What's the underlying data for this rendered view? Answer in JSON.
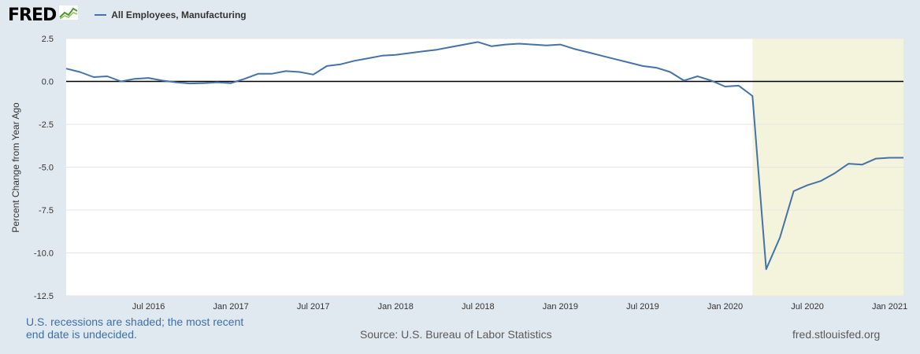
{
  "header": {
    "logo_text": "FRED",
    "logo_icon": "fred-graph-icon",
    "series_title": "All Employees, Manufacturing"
  },
  "footer": {
    "recession_note": "U.S. recessions are shaded; the most recent end date is undecided.",
    "source": "Source: U.S. Bureau of Labor Statistics",
    "url": "fred.stlouisfed.org"
  },
  "colors": {
    "line": "#4572a7",
    "recession_shade": "#f4f4dc",
    "page_bg": "#e1e9f0",
    "plot_bg": "#ffffff",
    "zero_line": "#000000",
    "grid": "#e6e6e6"
  },
  "chart_data": {
    "type": "line",
    "title": "",
    "xlabel": "",
    "ylabel": "Percent Change from Year Ago",
    "ylim": [
      -12.5,
      2.5
    ],
    "yticks": [
      2.5,
      0.0,
      -2.5,
      -5.0,
      -7.5,
      -10.0,
      -12.5
    ],
    "ytick_labels": [
      "2.5",
      "0.0",
      "-2.5",
      "-5.0",
      "-7.5",
      "-10.0",
      "-12.5"
    ],
    "xlim": [
      "2016-01",
      "2021-02"
    ],
    "xticks": [
      "2016-07",
      "2017-01",
      "2017-07",
      "2018-01",
      "2018-07",
      "2019-01",
      "2019-07",
      "2020-01",
      "2020-07",
      "2021-01"
    ],
    "xtick_labels": [
      "Jul 2016",
      "Jan 2017",
      "Jul 2017",
      "Jan 2018",
      "Jul 2018",
      "Jan 2019",
      "Jul 2019",
      "Jan 2020",
      "Jul 2020",
      "Jan 2021"
    ],
    "grid": true,
    "zero_line": true,
    "recession": {
      "start": "2020-03",
      "end": "2021-02"
    },
    "series": [
      {
        "name": "All Employees, Manufacturing",
        "x": [
          "2016-01",
          "2016-02",
          "2016-03",
          "2016-04",
          "2016-05",
          "2016-06",
          "2016-07",
          "2016-08",
          "2016-09",
          "2016-10",
          "2016-11",
          "2016-12",
          "2017-01",
          "2017-02",
          "2017-03",
          "2017-04",
          "2017-05",
          "2017-06",
          "2017-07",
          "2017-08",
          "2017-09",
          "2017-10",
          "2017-11",
          "2017-12",
          "2018-01",
          "2018-02",
          "2018-03",
          "2018-04",
          "2018-05",
          "2018-06",
          "2018-07",
          "2018-08",
          "2018-09",
          "2018-10",
          "2018-11",
          "2018-12",
          "2019-01",
          "2019-02",
          "2019-03",
          "2019-04",
          "2019-05",
          "2019-06",
          "2019-07",
          "2019-08",
          "2019-09",
          "2019-10",
          "2019-11",
          "2019-12",
          "2020-01",
          "2020-02",
          "2020-03",
          "2020-04",
          "2020-05",
          "2020-06",
          "2020-07",
          "2020-08",
          "2020-09",
          "2020-10",
          "2020-11",
          "2020-12",
          "2021-01",
          "2021-02"
        ],
        "values": [
          0.75,
          0.55,
          0.25,
          0.3,
          0.0,
          0.15,
          0.2,
          0.05,
          -0.05,
          -0.12,
          -0.1,
          -0.05,
          -0.1,
          0.15,
          0.45,
          0.45,
          0.6,
          0.55,
          0.4,
          0.9,
          1.0,
          1.2,
          1.35,
          1.5,
          1.55,
          1.65,
          1.75,
          1.85,
          2.0,
          2.15,
          2.3,
          2.05,
          2.15,
          2.2,
          2.15,
          2.1,
          2.15,
          1.9,
          1.7,
          1.5,
          1.3,
          1.1,
          0.9,
          0.8,
          0.55,
          0.05,
          0.3,
          0.05,
          -0.3,
          -0.25,
          -0.85,
          -10.95,
          -9.1,
          -6.4,
          -6.05,
          -5.8,
          -5.35,
          -4.8,
          -4.85,
          -4.5,
          -4.45,
          -4.45
        ]
      }
    ]
  }
}
